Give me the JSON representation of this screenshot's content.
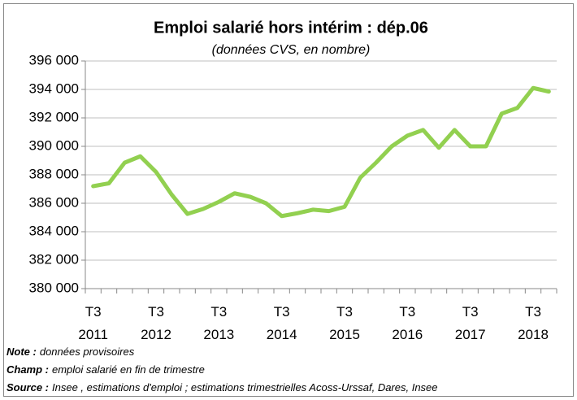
{
  "chart_data": {
    "type": "line",
    "title": "Emploi salarié hors intérim : dép.06",
    "subtitle": "(données CVS, en nombre)",
    "categories": [
      "T3 2011",
      null,
      null,
      null,
      "T3 2012",
      null,
      null,
      null,
      "T3 2013",
      null,
      null,
      null,
      "T3 2014",
      null,
      null,
      null,
      "T3 2015",
      null,
      null,
      null,
      "T3 2016",
      null,
      null,
      null,
      "T3 2017",
      null,
      null,
      null,
      "T3 2018",
      null
    ],
    "series": [
      {
        "color": "#92d050",
        "values": [
          387200,
          387400,
          388850,
          389300,
          388200,
          386600,
          385250,
          385600,
          386100,
          386700,
          386450,
          386000,
          385100,
          385300,
          385550,
          385450,
          385750,
          387800,
          388850,
          390000,
          390750,
          391150,
          389900,
          391150,
          390000,
          390000,
          392300,
          392700,
          394100,
          393850
        ]
      }
    ],
    "ylim": [
      380000,
      396000
    ],
    "yticks": [
      {
        "value": 380000,
        "label": "380 000"
      },
      {
        "value": 382000,
        "label": "382 000"
      },
      {
        "value": 384000,
        "label": "384 000"
      },
      {
        "value": 386000,
        "label": "386 000"
      },
      {
        "value": 388000,
        "label": "388 000"
      },
      {
        "value": 390000,
        "label": "390 000"
      },
      {
        "value": 392000,
        "label": "392 000"
      },
      {
        "value": 394000,
        "label": "394 000"
      },
      {
        "value": 396000,
        "label": "396 000"
      }
    ],
    "grid": true,
    "notes": [
      {
        "label": "Note :",
        "text": "données provisoires"
      },
      {
        "label": "Champ :",
        "text": "emploi salarié en fin de trimestre"
      },
      {
        "label": "Source :",
        "text": "Insee , estimations d'emploi ; estimations trimestrielles Acoss-Urssaf, Dares, Insee"
      }
    ]
  }
}
